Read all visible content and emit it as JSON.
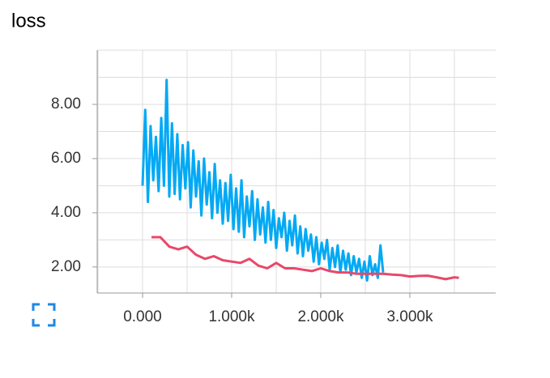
{
  "chart_data": {
    "type": "line",
    "title": "loss",
    "xlim": [
      -509,
      3964
    ],
    "ylim": [
      1.04,
      10
    ],
    "xticks": [
      {
        "value": 0,
        "label": "0.000"
      },
      {
        "value": 1000,
        "label": "1.000k"
      },
      {
        "value": 2000,
        "label": "2.000k"
      },
      {
        "value": 3000,
        "label": "3.000k"
      }
    ],
    "xminor": [
      -500,
      500,
      1500,
      2500,
      3500
    ],
    "yticks": [
      {
        "value": 2,
        "label": "2.00"
      },
      {
        "value": 4,
        "label": "4.00"
      },
      {
        "value": 6,
        "label": "6.00"
      },
      {
        "value": 8,
        "label": "8.00"
      }
    ],
    "yminor": [
      3,
      5,
      7,
      9,
      10
    ],
    "grid": true,
    "series": [
      {
        "color": "#03a9f4",
        "x": [
          0,
          30,
          60,
          90,
          120,
          150,
          180,
          210,
          240,
          270,
          300,
          330,
          360,
          390,
          420,
          450,
          480,
          510,
          540,
          570,
          600,
          630,
          660,
          690,
          720,
          750,
          780,
          810,
          840,
          870,
          900,
          930,
          960,
          990,
          1020,
          1050,
          1080,
          1110,
          1140,
          1170,
          1200,
          1230,
          1260,
          1290,
          1320,
          1350,
          1380,
          1410,
          1440,
          1470,
          1500,
          1530,
          1560,
          1590,
          1620,
          1650,
          1680,
          1710,
          1740,
          1770,
          1800,
          1830,
          1860,
          1890,
          1920,
          1950,
          1980,
          2010,
          2040,
          2070,
          2100,
          2130,
          2160,
          2190,
          2220,
          2250,
          2280,
          2310,
          2340,
          2370,
          2400,
          2430,
          2460,
          2490,
          2520,
          2550,
          2580,
          2610,
          2640,
          2670,
          2700
        ],
        "values": [
          5.0,
          7.8,
          4.4,
          7.2,
          5.2,
          6.8,
          4.8,
          7.5,
          5.0,
          8.9,
          4.6,
          7.3,
          4.7,
          6.9,
          4.5,
          6.5,
          4.9,
          6.6,
          4.2,
          6.3,
          4.6,
          5.9,
          3.9,
          6.0,
          4.3,
          5.5,
          3.8,
          5.8,
          4.0,
          5.2,
          3.6,
          5.1,
          3.7,
          5.4,
          3.4,
          4.9,
          3.3,
          5.2,
          3.1,
          4.6,
          3.5,
          4.8,
          3.0,
          4.5,
          3.2,
          4.2,
          2.9,
          4.4,
          3.0,
          4.1,
          2.7,
          3.8,
          3.1,
          4.0,
          2.6,
          3.7,
          2.8,
          3.9,
          2.5,
          3.5,
          2.4,
          3.4,
          2.6,
          3.2,
          2.2,
          3.1,
          2.1,
          2.9,
          2.3,
          3.0,
          1.9,
          2.7,
          2.0,
          2.8,
          1.8,
          2.6,
          1.9,
          2.5,
          1.7,
          2.4,
          1.8,
          2.3,
          1.6,
          2.2,
          1.5,
          2.4,
          1.7,
          2.1,
          1.6,
          2.8,
          1.8
        ]
      },
      {
        "color": "#e8486a",
        "x": [
          100,
          200,
          300,
          400,
          500,
          600,
          700,
          800,
          900,
          1000,
          1100,
          1200,
          1300,
          1400,
          1500,
          1600,
          1700,
          1800,
          1900,
          2000,
          2100,
          2200,
          2300,
          2400,
          2500,
          2600,
          2700,
          2800,
          2900,
          3000,
          3100,
          3200,
          3300,
          3400,
          3500,
          3550
        ],
        "values": [
          3.1,
          3.1,
          2.75,
          2.65,
          2.75,
          2.45,
          2.3,
          2.4,
          2.25,
          2.2,
          2.15,
          2.3,
          2.05,
          1.95,
          2.15,
          1.95,
          1.95,
          1.9,
          1.85,
          1.95,
          1.85,
          1.8,
          1.8,
          1.75,
          1.75,
          1.75,
          1.75,
          1.72,
          1.7,
          1.65,
          1.67,
          1.68,
          1.62,
          1.55,
          1.62,
          1.6
        ]
      }
    ]
  }
}
